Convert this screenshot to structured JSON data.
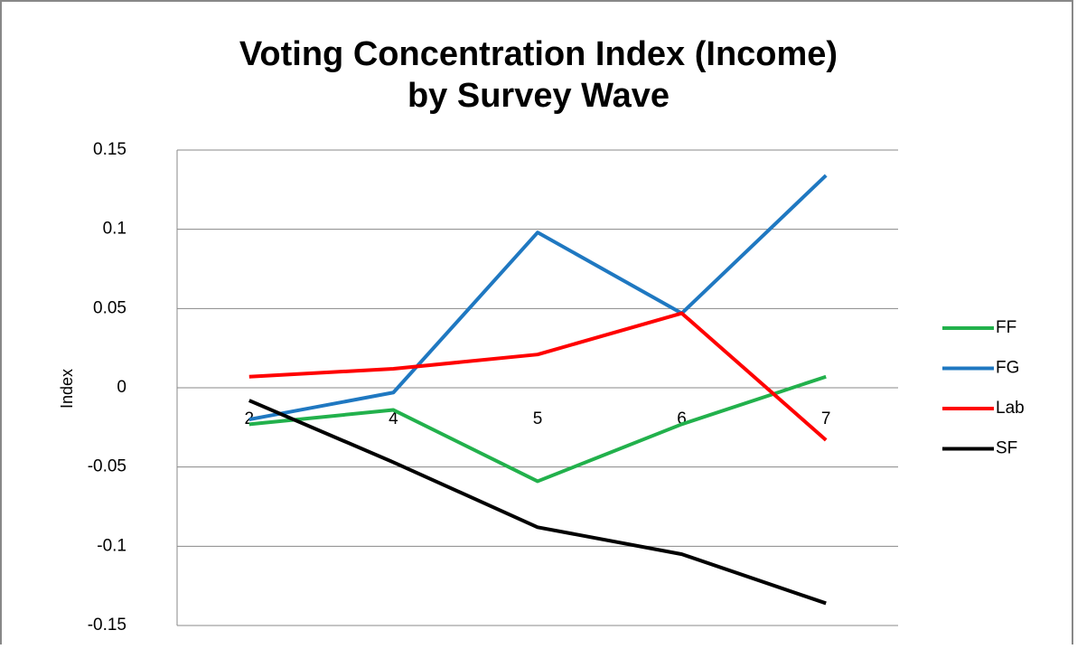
{
  "chart_data": {
    "type": "line",
    "title": [
      "Voting Concentration Index (Income)",
      "by Survey Wave"
    ],
    "y_label": "Index",
    "categories": [
      "2",
      "4",
      "5",
      "6",
      "7"
    ],
    "series": [
      {
        "name": "FF",
        "color": "#22b14c",
        "values": [
          -0.023,
          -0.014,
          -0.059,
          -0.023,
          0.007
        ]
      },
      {
        "name": "FG",
        "color": "#1f78c1",
        "values": [
          -0.02,
          -0.003,
          0.098,
          0.047,
          0.134
        ]
      },
      {
        "name": "Lab",
        "color": "#ff0000",
        "values": [
          0.007,
          0.012,
          0.021,
          0.047,
          -0.033
        ]
      },
      {
        "name": "SF",
        "color": "#000000",
        "values": [
          -0.008,
          -0.047,
          -0.088,
          -0.105,
          -0.136
        ]
      }
    ],
    "ylim": [
      -0.15,
      0.15
    ],
    "yticks": [
      0.15,
      0.1,
      0.05,
      0,
      -0.05,
      -0.1,
      -0.15
    ],
    "grid": true,
    "legend": "right"
  }
}
